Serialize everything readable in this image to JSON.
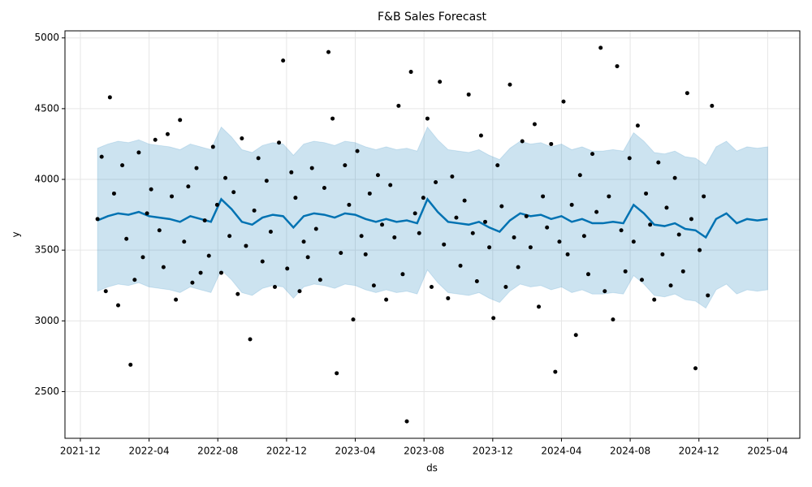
{
  "chart_data": {
    "type": "forecast",
    "title": "F&B Sales Forecast",
    "x_label": "ds",
    "y_label": "y",
    "grid": true,
    "xlim": [
      2021.842,
      2025.406
    ],
    "ylim": [
      2170,
      5050
    ],
    "xticks": [
      {
        "value": 2021.9167,
        "label": "2021-12"
      },
      {
        "value": 2022.25,
        "label": "2022-04"
      },
      {
        "value": 2022.5833,
        "label": "2022-08"
      },
      {
        "value": 2022.9167,
        "label": "2022-12"
      },
      {
        "value": 2023.25,
        "label": "2023-04"
      },
      {
        "value": 2023.5833,
        "label": "2023-08"
      },
      {
        "value": 2023.9167,
        "label": "2023-12"
      },
      {
        "value": 2024.25,
        "label": "2024-04"
      },
      {
        "value": 2024.5833,
        "label": "2024-08"
      },
      {
        "value": 2024.9167,
        "label": "2024-12"
      },
      {
        "value": 2025.25,
        "label": "2025-04"
      }
    ],
    "yticks": [
      2500,
      3000,
      3500,
      4000,
      4500,
      5000
    ],
    "points": {
      "color": "#000000",
      "x": [
        2022.0,
        2022.02,
        2022.04,
        2022.06,
        2022.08,
        2022.1,
        2022.12,
        2022.14,
        2022.16,
        2022.18,
        2022.2,
        2022.22,
        2022.24,
        2022.26,
        2022.28,
        2022.3,
        2022.32,
        2022.34,
        2022.36,
        2022.38,
        2022.4,
        2022.42,
        2022.44,
        2022.46,
        2022.48,
        2022.5,
        2022.52,
        2022.54,
        2022.56,
        2022.58,
        2022.6,
        2022.62,
        2022.64,
        2022.66,
        2022.68,
        2022.7,
        2022.72,
        2022.74,
        2022.76,
        2022.78,
        2022.8,
        2022.82,
        2022.84,
        2022.86,
        2022.88,
        2022.9,
        2022.92,
        2022.94,
        2022.96,
        2022.98,
        2023.0,
        2023.02,
        2023.04,
        2023.06,
        2023.08,
        2023.1,
        2023.12,
        2023.14,
        2023.16,
        2023.18,
        2023.2,
        2023.22,
        2023.24,
        2023.26,
        2023.28,
        2023.3,
        2023.32,
        2023.34,
        2023.36,
        2023.38,
        2023.4,
        2023.42,
        2023.44,
        2023.46,
        2023.48,
        2023.5,
        2023.52,
        2023.54,
        2023.56,
        2023.58,
        2023.6,
        2023.62,
        2023.64,
        2023.66,
        2023.68,
        2023.7,
        2023.72,
        2023.74,
        2023.76,
        2023.78,
        2023.8,
        2023.82,
        2023.84,
        2023.86,
        2023.88,
        2023.9,
        2023.92,
        2023.94,
        2023.96,
        2023.98,
        2024.0,
        2024.02,
        2024.04,
        2024.06,
        2024.08,
        2024.1,
        2024.12,
        2024.14,
        2024.16,
        2024.18,
        2024.2,
        2024.22,
        2024.24,
        2024.26,
        2024.28,
        2024.3,
        2024.32,
        2024.34,
        2024.36,
        2024.38,
        2024.4,
        2024.42,
        2024.44,
        2024.46,
        2024.48,
        2024.5,
        2024.52,
        2024.54,
        2024.56,
        2024.58,
        2024.6,
        2024.62,
        2024.64,
        2024.66,
        2024.68,
        2024.7,
        2024.72,
        2024.74,
        2024.76,
        2024.78,
        2024.8,
        2024.82,
        2024.84,
        2024.86,
        2024.88,
        2024.9,
        2024.92,
        2024.94,
        2024.96,
        2024.98
      ],
      "values": [
        3720,
        4160,
        3210,
        4580,
        3900,
        3110,
        4100,
        3580,
        2690,
        3290,
        4190,
        3450,
        3760,
        3930,
        4280,
        3640,
        3380,
        4320,
        3880,
        3150,
        4420,
        3560,
        3950,
        3270,
        4080,
        3340,
        3710,
        3460,
        4230,
        3820,
        3340,
        4010,
        3600,
        3910,
        3190,
        4290,
        3530,
        2870,
        3780,
        4150,
        3420,
        3990,
        3630,
        3240,
        4260,
        4840,
        3370,
        4050,
        3870,
        3210,
        3560,
        3450,
        4080,
        3650,
        3290,
        3940,
        4900,
        4430,
        2630,
        3480,
        4100,
        3820,
        3010,
        4200,
        3600,
        3470,
        3900,
        3250,
        4030,
        3680,
        3150,
        3960,
        3590,
        4520,
        3330,
        2290,
        4760,
        3760,
        3620,
        3870,
        4430,
        3240,
        3980,
        4690,
        3540,
        3160,
        4020,
        3730,
        3390,
        3850,
        4600,
        3620,
        3280,
        4310,
        3700,
        3520,
        3020,
        4100,
        3810,
        3240,
        4670,
        3590,
        3380,
        4270,
        3740,
        3520,
        4390,
        3100,
        3880,
        3660,
        4250,
        2640,
        3560,
        4550,
        3470,
        3820,
        2900,
        4030,
        3600,
        3330,
        4180,
        3770,
        4930,
        3210,
        3880,
        3010,
        4800,
        3640,
        3350,
        4150,
        3560,
        4380,
        3290,
        3900,
        3680,
        3150,
        4120,
        3470,
        3800,
        3250,
        4010,
        3610,
        3350,
        4610,
        3720,
        2665,
        3500,
        3880,
        3180,
        4520
      ]
    },
    "forecast": {
      "color": "#0072B2",
      "x": [
        2022.0,
        2022.05,
        2022.1,
        2022.15,
        2022.2,
        2022.25,
        2022.3,
        2022.35,
        2022.4,
        2022.45,
        2022.5,
        2022.55,
        2022.6,
        2022.65,
        2022.7,
        2022.75,
        2022.8,
        2022.85,
        2022.9,
        2022.95,
        2023.0,
        2023.05,
        2023.1,
        2023.15,
        2023.2,
        2023.25,
        2023.3,
        2023.35,
        2023.4,
        2023.45,
        2023.5,
        2023.55,
        2023.6,
        2023.65,
        2023.7,
        2023.75,
        2023.8,
        2023.85,
        2023.9,
        2023.95,
        2024.0,
        2024.05,
        2024.1,
        2024.15,
        2024.2,
        2024.25,
        2024.3,
        2024.35,
        2024.4,
        2024.45,
        2024.5,
        2024.55,
        2024.6,
        2024.65,
        2024.7,
        2024.75,
        2024.8,
        2024.85,
        2024.9,
        2024.95,
        2025.0,
        2025.05,
        2025.1,
        2025.15,
        2025.2,
        2025.25
      ],
      "values": [
        3710,
        3740,
        3760,
        3750,
        3770,
        3740,
        3730,
        3720,
        3700,
        3740,
        3720,
        3700,
        3860,
        3790,
        3700,
        3680,
        3730,
        3750,
        3740,
        3660,
        3740,
        3760,
        3750,
        3730,
        3760,
        3750,
        3720,
        3700,
        3720,
        3700,
        3710,
        3690,
        3860,
        3770,
        3700,
        3690,
        3680,
        3700,
        3660,
        3630,
        3710,
        3760,
        3740,
        3750,
        3720,
        3740,
        3700,
        3720,
        3690,
        3690,
        3700,
        3690,
        3820,
        3760,
        3680,
        3670,
        3690,
        3650,
        3640,
        3590,
        3720,
        3760,
        3690,
        3720,
        3710,
        3720
      ],
      "upper": [
        4220,
        4250,
        4270,
        4260,
        4280,
        4250,
        4240,
        4230,
        4210,
        4250,
        4230,
        4210,
        4370,
        4300,
        4210,
        4190,
        4240,
        4260,
        4250,
        4170,
        4250,
        4270,
        4260,
        4240,
        4270,
        4260,
        4230,
        4210,
        4230,
        4210,
        4220,
        4200,
        4370,
        4280,
        4210,
        4200,
        4190,
        4210,
        4170,
        4140,
        4220,
        4270,
        4250,
        4260,
        4230,
        4250,
        4210,
        4230,
        4200,
        4200,
        4210,
        4200,
        4330,
        4270,
        4190,
        4180,
        4200,
        4160,
        4150,
        4100,
        4230,
        4270,
        4200,
        4230,
        4220,
        4230
      ],
      "lower": [
        3210,
        3240,
        3260,
        3250,
        3270,
        3240,
        3230,
        3220,
        3200,
        3240,
        3220,
        3200,
        3360,
        3290,
        3200,
        3180,
        3230,
        3250,
        3240,
        3160,
        3240,
        3260,
        3250,
        3230,
        3260,
        3250,
        3220,
        3200,
        3220,
        3200,
        3210,
        3190,
        3360,
        3270,
        3200,
        3190,
        3180,
        3200,
        3160,
        3130,
        3210,
        3260,
        3240,
        3250,
        3220,
        3240,
        3200,
        3220,
        3190,
        3190,
        3200,
        3190,
        3320,
        3260,
        3180,
        3170,
        3190,
        3150,
        3140,
        3090,
        3220,
        3260,
        3190,
        3220,
        3210,
        3220
      ]
    }
  }
}
